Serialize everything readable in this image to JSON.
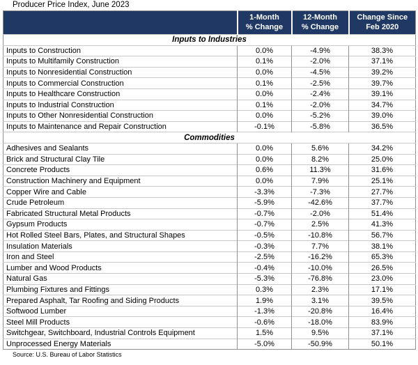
{
  "title": "Producer Price Index, June 2023",
  "source": "Source: U.S. Bureau of Labor Statistics",
  "columns": [
    {
      "line1": "1-Month",
      "line2": "% Change"
    },
    {
      "line1": "12-Month",
      "line2": "% Change"
    },
    {
      "line1": "Change Since",
      "line2": "Feb 2020"
    }
  ],
  "colors": {
    "header_bg": "#1f3864",
    "header_text": "#ffffff",
    "grid_vertical": "#8f8f8f",
    "grid_horizontal": "#c9c9c9",
    "body_bg": "#ffffff"
  },
  "chart_data": {
    "type": "table",
    "title": "Producer Price Index, June 2023",
    "column_headers": [
      "",
      "1-Month % Change",
      "12-Month % Change",
      "Change Since Feb 2020"
    ],
    "sections": [
      {
        "name": "Inputs to Industries",
        "rows": [
          {
            "label": "Inputs to Construction",
            "one_month": "0.0%",
            "twelve_month": "-4.9%",
            "since_feb_2020": "38.3%"
          },
          {
            "label": "Inputs to Multifamily Construction",
            "one_month": "0.1%",
            "twelve_month": "-2.0%",
            "since_feb_2020": "37.1%"
          },
          {
            "label": "Inputs to Nonresidential Construction",
            "one_month": "0.0%",
            "twelve_month": "-4.5%",
            "since_feb_2020": "39.2%"
          },
          {
            "label": "Inputs to Commercial Construction",
            "one_month": "0.1%",
            "twelve_month": "-2.5%",
            "since_feb_2020": "39.7%"
          },
          {
            "label": "Inputs to Healthcare Construction",
            "one_month": "0.0%",
            "twelve_month": "-2.4%",
            "since_feb_2020": "39.1%"
          },
          {
            "label": "Inputs to Industrial Construction",
            "one_month": "0.1%",
            "twelve_month": "-2.0%",
            "since_feb_2020": "34.7%"
          },
          {
            "label": "Inputs to Other Nonresidential Construction",
            "one_month": "0.0%",
            "twelve_month": "-5.2%",
            "since_feb_2020": "39.0%"
          },
          {
            "label": "Inputs to Maintenance and Repair Construction",
            "one_month": "-0.1%",
            "twelve_month": "-5.8%",
            "since_feb_2020": "36.5%"
          }
        ]
      },
      {
        "name": "Commodities",
        "rows": [
          {
            "label": "Adhesives and Sealants",
            "one_month": "0.0%",
            "twelve_month": "5.6%",
            "since_feb_2020": "34.2%"
          },
          {
            "label": "Brick and Structural Clay Tile",
            "one_month": "0.0%",
            "twelve_month": "8.2%",
            "since_feb_2020": "25.0%"
          },
          {
            "label": "Concrete Products",
            "one_month": "0.6%",
            "twelve_month": "11.3%",
            "since_feb_2020": "31.6%"
          },
          {
            "label": "Construction Machinery and Equipment",
            "one_month": "0.0%",
            "twelve_month": "7.9%",
            "since_feb_2020": "25.1%"
          },
          {
            "label": "Copper Wire and Cable",
            "one_month": "-3.3%",
            "twelve_month": "-7.3%",
            "since_feb_2020": "27.7%"
          },
          {
            "label": "Crude Petroleum",
            "one_month": "-5.9%",
            "twelve_month": "-42.6%",
            "since_feb_2020": "37.7%"
          },
          {
            "label": "Fabricated Structural Metal Products",
            "one_month": "-0.7%",
            "twelve_month": "-2.0%",
            "since_feb_2020": "51.4%"
          },
          {
            "label": "Gypsum Products",
            "one_month": "-0.7%",
            "twelve_month": "2.5%",
            "since_feb_2020": "41.3%"
          },
          {
            "label": "Hot Rolled Steel Bars, Plates, and Structural Shapes",
            "one_month": "-0.5%",
            "twelve_month": "-10.8%",
            "since_feb_2020": "56.7%"
          },
          {
            "label": "Insulation Materials",
            "one_month": "-0.3%",
            "twelve_month": "7.7%",
            "since_feb_2020": "38.1%"
          },
          {
            "label": "Iron and Steel",
            "one_month": "-2.5%",
            "twelve_month": "-16.2%",
            "since_feb_2020": "65.3%"
          },
          {
            "label": "Lumber and Wood Products",
            "one_month": "-0.4%",
            "twelve_month": "-10.0%",
            "since_feb_2020": "26.5%"
          },
          {
            "label": "Natural Gas",
            "one_month": "-5.3%",
            "twelve_month": "-76.8%",
            "since_feb_2020": "23.0%"
          },
          {
            "label": "Plumbing Fixtures and Fittings",
            "one_month": "0.3%",
            "twelve_month": "2.3%",
            "since_feb_2020": "17.1%"
          },
          {
            "label": "Prepared Asphalt, Tar Roofing and Siding Products",
            "one_month": "1.9%",
            "twelve_month": "3.1%",
            "since_feb_2020": "39.5%"
          },
          {
            "label": "Softwood Lumber",
            "one_month": "-1.3%",
            "twelve_month": "-20.8%",
            "since_feb_2020": "16.4%"
          },
          {
            "label": "Steel Mill Products",
            "one_month": "-0.6%",
            "twelve_month": "-18.0%",
            "since_feb_2020": "83.9%"
          },
          {
            "label": "Switchgear, Switchboard, Industrial Controls Equipment",
            "one_month": "1.5%",
            "twelve_month": "9.5%",
            "since_feb_2020": "37.1%"
          },
          {
            "label": "Unprocessed Energy Materials",
            "one_month": "-5.0%",
            "twelve_month": "-50.9%",
            "since_feb_2020": "50.1%"
          }
        ]
      }
    ],
    "source": "Source: U.S. Bureau of Labor Statistics"
  }
}
